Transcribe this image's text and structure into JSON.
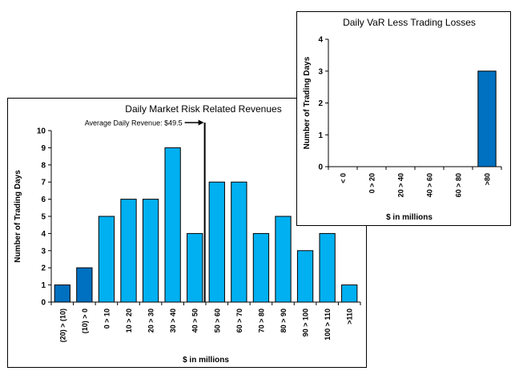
{
  "chart_data": [
    {
      "type": "bar",
      "title": "Daily Market Risk Related Revenues",
      "xlabel": "$ in millions",
      "ylabel": "Number of Trading Days",
      "ylim": [
        0,
        10
      ],
      "yticks": [
        0,
        1,
        2,
        3,
        4,
        5,
        6,
        7,
        8,
        9,
        10
      ],
      "grid": false,
      "legend": "none",
      "categories": [
        "(20) > (10)",
        "(10) > 0",
        "0 > 10",
        "10 > 20",
        "20 > 30",
        "30 > 40",
        "40 > 50",
        "50 > 60",
        "60 > 70",
        "70 > 80",
        "80 > 90",
        "90 > 100",
        "100 > 110",
        ">110"
      ],
      "values": [
        1,
        2,
        5,
        6,
        6,
        9,
        4,
        7,
        7,
        4,
        5,
        3,
        4,
        1
      ],
      "colors": [
        "#0070c0",
        "#0070c0",
        "#00b0f0",
        "#00b0f0",
        "#00b0f0",
        "#00b0f0",
        "#00b0f0",
        "#00b0f0",
        "#00b0f0",
        "#00b0f0",
        "#00b0f0",
        "#00b0f0",
        "#00b0f0",
        "#00b0f0"
      ],
      "annotation": {
        "text": "Average Daily Revenue: $49.5",
        "x_value": 49.5
      }
    },
    {
      "type": "bar",
      "title": "Daily VaR Less Trading Losses",
      "xlabel": "$ in millions",
      "ylabel": "Number of Trading Days",
      "ylim": [
        0,
        4
      ],
      "yticks": [
        0,
        1,
        2,
        3,
        4
      ],
      "grid": false,
      "legend": "none",
      "categories": [
        "< 0",
        "0 > 20",
        "20 > 40",
        "40 > 60",
        "60 > 80",
        ">80"
      ],
      "values": [
        0,
        0,
        0,
        0,
        0,
        3
      ],
      "colors": [
        "#0070c0",
        "#0070c0",
        "#0070c0",
        "#0070c0",
        "#0070c0",
        "#0070c0"
      ]
    }
  ]
}
